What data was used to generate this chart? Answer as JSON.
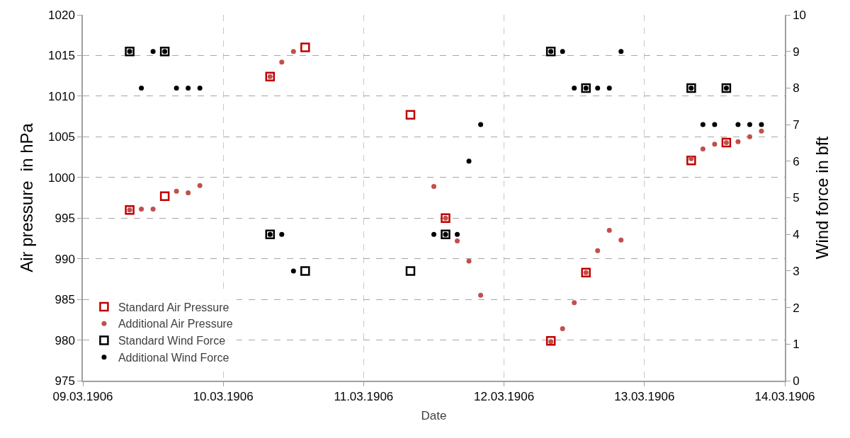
{
  "chart_data": {
    "type": "scatter",
    "xlabel": "Date",
    "ylabel": "Air pressure  in hPa",
    "y2label": "Wind force in bft",
    "xlim": [
      "1906-03-09",
      "1906-03-14"
    ],
    "xticks": [
      {
        "value": "1906-03-09",
        "label": "09.03.1906"
      },
      {
        "value": "1906-03-10",
        "label": "10.03.1906"
      },
      {
        "value": "1906-03-11",
        "label": "11.03.1906"
      },
      {
        "value": "1906-03-12",
        "label": "12.03.1906"
      },
      {
        "value": "1906-03-13",
        "label": "13.03.1906"
      },
      {
        "value": "1906-03-14",
        "label": "14.03.1906"
      }
    ],
    "ylim": [
      975,
      1020
    ],
    "yticks": [
      975,
      980,
      985,
      990,
      995,
      1000,
      1005,
      1010,
      1015,
      1020
    ],
    "y2lim": [
      0,
      10
    ],
    "y2ticks": [
      0,
      1,
      2,
      3,
      4,
      5,
      6,
      7,
      8,
      9,
      10
    ],
    "grid": true,
    "legend": "bottom left",
    "series": [
      {
        "name": "Standard Air Pressure",
        "color": "#c00000",
        "marker": "square",
        "x": [
          "1906-03-09T08:00",
          "1906-03-09T14:00",
          "1906-03-10T08:00",
          "1906-03-10T14:00",
          "1906-03-11T08:00",
          "1906-03-11T14:00",
          "1906-03-12T08:00",
          "1906-03-12T14:00",
          "1906-03-13T08:00",
          "1906-03-13T14:00"
        ],
        "values": [
          996.0,
          997.7,
          1012.4,
          1016.0,
          1007.7,
          995.0,
          979.9,
          988.3,
          1002.1,
          1004.3
        ]
      },
      {
        "name": "Additional Air Pressure",
        "color": "#c0504d",
        "marker": "circle",
        "x": [
          "1906-03-09T08:00",
          "1906-03-09T10:00",
          "1906-03-09T12:00",
          "1906-03-09T16:00",
          "1906-03-09T18:00",
          "1906-03-09T20:00",
          "1906-03-10T08:00",
          "1906-03-10T10:00",
          "1906-03-10T12:00",
          "1906-03-11T12:00",
          "1906-03-11T14:00",
          "1906-03-11T16:00",
          "1906-03-11T18:00",
          "1906-03-11T20:00",
          "1906-03-12T08:00",
          "1906-03-12T10:00",
          "1906-03-12T12:00",
          "1906-03-12T14:00",
          "1906-03-12T16:00",
          "1906-03-12T18:00",
          "1906-03-12T20:00",
          "1906-03-13T08:00",
          "1906-03-13T10:00",
          "1906-03-13T12:00",
          "1906-03-13T14:00",
          "1906-03-13T16:00",
          "1906-03-13T18:00",
          "1906-03-13T20:00"
        ],
        "values": [
          996.0,
          996.1,
          996.1,
          998.3,
          998.1,
          999.0,
          1012.4,
          1014.2,
          1015.5,
          998.9,
          995.0,
          992.2,
          989.7,
          985.5,
          979.8,
          981.4,
          984.6,
          988.3,
          991.0,
          993.5,
          992.3,
          1002.3,
          1003.5,
          1004.1,
          1004.3,
          1004.4,
          1005.0,
          1005.7
        ]
      },
      {
        "name": "Standard Wind Force",
        "color": "#000000",
        "marker": "square",
        "axis": "y2",
        "x": [
          "1906-03-09T08:00",
          "1906-03-09T14:00",
          "1906-03-10T08:00",
          "1906-03-10T14:00",
          "1906-03-11T08:00",
          "1906-03-11T14:00",
          "1906-03-12T08:00",
          "1906-03-12T14:00",
          "1906-03-13T08:00",
          "1906-03-13T14:00"
        ],
        "values": [
          9,
          9,
          4,
          3,
          3,
          4,
          9,
          8,
          8,
          8
        ]
      },
      {
        "name": "Additional Wind Force",
        "color": "#000000",
        "marker": "circle",
        "axis": "y2",
        "x": [
          "1906-03-09T08:00",
          "1906-03-09T10:00",
          "1906-03-09T12:00",
          "1906-03-09T14:00",
          "1906-03-09T16:00",
          "1906-03-09T18:00",
          "1906-03-09T20:00",
          "1906-03-10T08:00",
          "1906-03-10T10:00",
          "1906-03-10T12:00",
          "1906-03-11T12:00",
          "1906-03-11T14:00",
          "1906-03-11T16:00",
          "1906-03-11T18:00",
          "1906-03-11T20:00",
          "1906-03-12T08:00",
          "1906-03-12T10:00",
          "1906-03-12T12:00",
          "1906-03-12T14:00",
          "1906-03-12T16:00",
          "1906-03-12T18:00",
          "1906-03-12T20:00",
          "1906-03-13T08:00",
          "1906-03-13T10:00",
          "1906-03-13T12:00",
          "1906-03-13T14:00",
          "1906-03-13T16:00",
          "1906-03-13T18:00",
          "1906-03-13T20:00"
        ],
        "values": [
          9,
          8,
          9,
          9,
          8,
          8,
          8,
          4,
          4,
          3,
          4,
          4,
          4,
          6,
          7,
          9,
          9,
          8,
          8,
          8,
          8,
          9,
          8,
          7,
          7,
          8,
          7,
          7,
          7
        ]
      }
    ]
  }
}
